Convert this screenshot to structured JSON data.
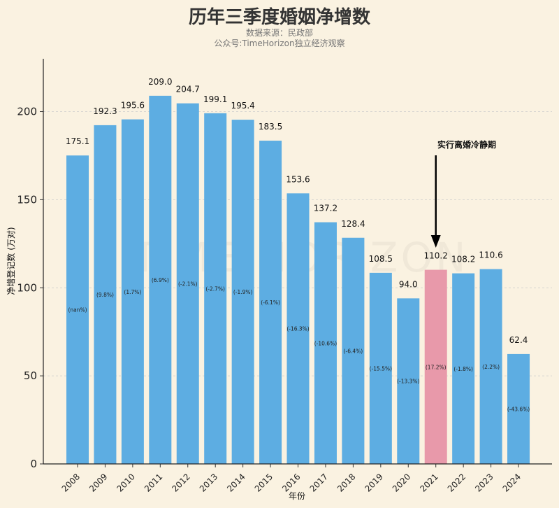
{
  "title": "历年三季度婚姻净增数",
  "subtitle1": "数据来源：民政部",
  "subtitle2": "公众号:TimeHorizon独立经济观察",
  "watermark": "TIME HORIZON",
  "chart_data": {
    "type": "bar",
    "xlabel": "年份",
    "ylabel": "净增登记数 (万对)",
    "ylim": [
      0,
      230
    ],
    "yticks": [
      0,
      50,
      100,
      150,
      200
    ],
    "grid": true,
    "categories": [
      "2008",
      "2009",
      "2010",
      "2011",
      "2012",
      "2013",
      "2014",
      "2015",
      "2016",
      "2017",
      "2018",
      "2019",
      "2020",
      "2021",
      "2022",
      "2023",
      "2024"
    ],
    "values": [
      175.1,
      192.3,
      195.6,
      209.0,
      204.7,
      199.1,
      195.4,
      183.5,
      153.6,
      137.2,
      128.4,
      108.5,
      94.0,
      110.2,
      108.2,
      110.6,
      62.4
    ],
    "value_labels": [
      "175.1",
      "192.3",
      "195.6",
      "209.0",
      "204.7",
      "199.1",
      "195.4",
      "183.5",
      "153.6",
      "137.2",
      "128.4",
      "108.5",
      "94.0",
      "110.2",
      "108.2",
      "110.6",
      "62.4"
    ],
    "pct_labels": [
      "(nan%)",
      "(9.8%)",
      "(1.7%)",
      "(6.9%)",
      "(-2.1%)",
      "(-2.7%)",
      "(-1.9%)",
      "(-6.1%)",
      "(-16.3%)",
      "(-10.6%)",
      "(-6.4%)",
      "(-15.5%)",
      "(-13.3%)",
      "(17.2%)",
      "(-1.8%)",
      "(2.2%)",
      "(-43.6%)"
    ],
    "colors": {
      "default": "#5dade2",
      "highlight": "#e899aa"
    },
    "highlight_category": "2021",
    "annotation": {
      "text": "实行离婚冷静期",
      "target": "2021"
    }
  }
}
